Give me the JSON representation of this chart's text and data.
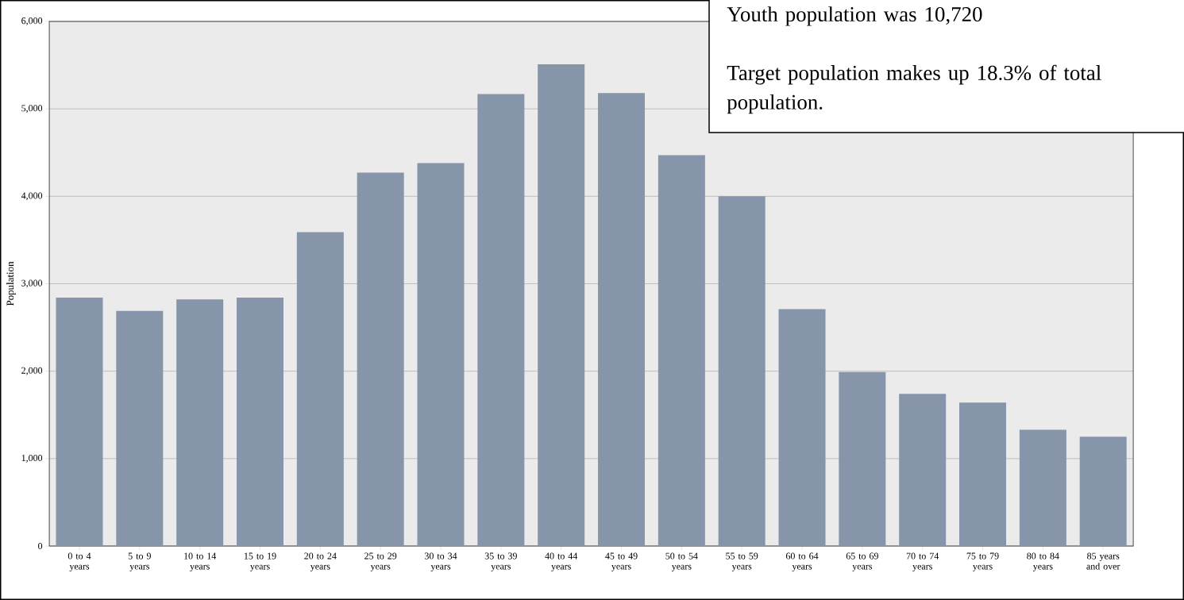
{
  "chart_data": {
    "type": "bar",
    "ylabel": "Population",
    "categories": [
      "0 to 4 years",
      "5 to 9 years",
      "10 to 14 years",
      "15 to 19 years",
      "20 to 24 years",
      "25 to 29 years",
      "30 to 34 years",
      "35 to 39 years",
      "40 to 44 years",
      "45 to 49 years",
      "50 to 54 years",
      "55 to 59 years",
      "60 to 64 years",
      "65 to 69 years",
      "70 to 74 years",
      "75 to 79 years",
      "80 to 84 years",
      "85 years and over"
    ],
    "values": [
      2840,
      2690,
      2820,
      2840,
      3590,
      4270,
      4380,
      5170,
      5510,
      5180,
      4470,
      4000,
      2710,
      1990,
      1740,
      1640,
      1330,
      1250
    ],
    "color": "#8795aa",
    "ylim": [
      0,
      6000
    ],
    "yticks": [
      {
        "value": 0,
        "label": "0"
      },
      {
        "value": 1000,
        "label": "1,000"
      },
      {
        "value": 2000,
        "label": "2,000"
      },
      {
        "value": 3000,
        "label": "3,000"
      },
      {
        "value": 4000,
        "label": "4,000"
      },
      {
        "value": 5000,
        "label": "5,000"
      },
      {
        "value": 6000,
        "label": "6,000"
      }
    ],
    "grid": "y",
    "annotations": [
      "Youth population was 10,720",
      "Target population makes up 18.3% of total population."
    ]
  }
}
